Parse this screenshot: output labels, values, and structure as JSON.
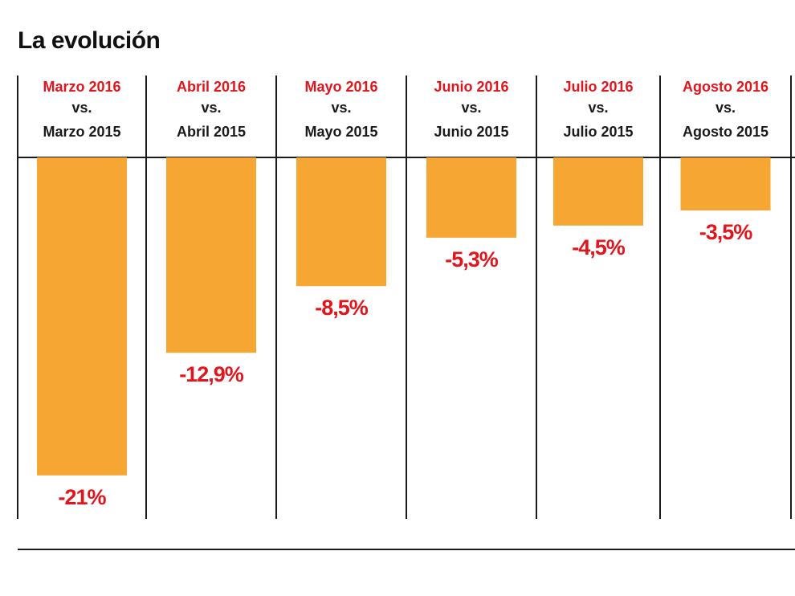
{
  "title": "La evolución",
  "chart_data": {
    "type": "bar",
    "title": "La evolución",
    "categories": [
      {
        "current": "Marzo 2016",
        "vs": "vs.",
        "previous": "Marzo 2015"
      },
      {
        "current": "Abril 2016",
        "vs": "vs.",
        "previous": "Abril 2015"
      },
      {
        "current": "Mayo 2016",
        "vs": "vs.",
        "previous": "Mayo 2015"
      },
      {
        "current": "Junio 2016",
        "vs": "vs.",
        "previous": "Junio 2015"
      },
      {
        "current": "Julio 2016",
        "vs": "vs.",
        "previous": "Julio 2015"
      },
      {
        "current": "Agosto 2016",
        "vs": "vs.",
        "previous": "Agosto 2015"
      }
    ],
    "values": [
      -21,
      -12.9,
      -8.5,
      -5.3,
      -4.5,
      -3.5
    ],
    "value_labels": [
      "-21%",
      "-12,9%",
      "-8,5%",
      "-5,3%",
      "-4,5%",
      "-3,5%"
    ],
    "unit": "%",
    "ylim": [
      -24,
      0
    ],
    "xlabel": "",
    "ylabel": "",
    "colors": {
      "bar": "#f5a633",
      "label": "#e2141c",
      "header_current": "#e2141c",
      "header_text": "#1a1a1a",
      "divider": "#1a1a1a"
    }
  }
}
